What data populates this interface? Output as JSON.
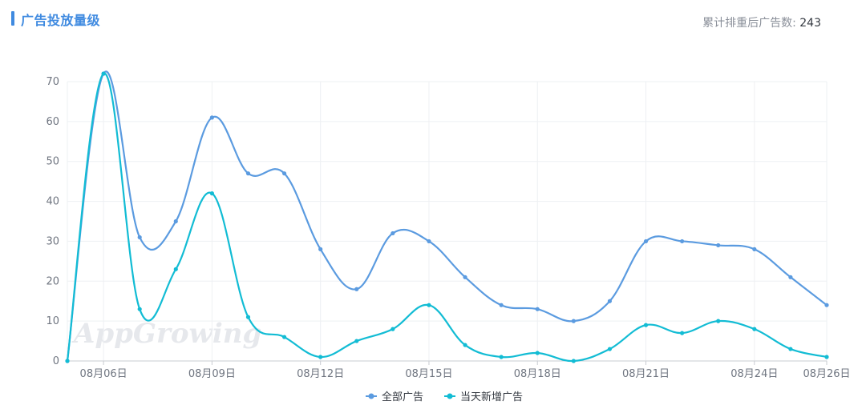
{
  "header": {
    "title": "广告投放量级",
    "summary_label": "累计排重后广告数:",
    "summary_value": "243"
  },
  "watermark": "AppGrowing",
  "colors": {
    "accent": "#3f8ae0",
    "series_all": "#5b9be0",
    "series_new": "#12bcd4",
    "grid": "#eef0f3",
    "axis_text": "#6f7580"
  },
  "chart_data": {
    "type": "line",
    "title": "",
    "xlabel": "",
    "ylabel": "",
    "ylim": [
      0,
      70
    ],
    "yticks": [
      0,
      10,
      20,
      30,
      40,
      50,
      60,
      70
    ],
    "x": [
      "08月05日",
      "08月06日",
      "08月07日",
      "08月08日",
      "08月09日",
      "08月10日",
      "08月11日",
      "08月12日",
      "08月13日",
      "08月14日",
      "08月15日",
      "08月16日",
      "08月17日",
      "08月18日",
      "08月19日",
      "08月20日",
      "08月21日",
      "08月22日",
      "08月23日",
      "08月24日",
      "08月25日",
      "08月26日"
    ],
    "xticks": [
      "08月06日",
      "08月09日",
      "08月12日",
      "08月15日",
      "08月18日",
      "08月21日",
      "08月24日",
      "08月26日"
    ],
    "grid": true,
    "legend_position": "bottom-center",
    "series": [
      {
        "name": "全部广告",
        "color": "#5b9be0",
        "values": [
          0,
          72,
          31,
          35,
          61,
          47,
          47,
          28,
          18,
          32,
          30,
          21,
          14,
          13,
          10,
          15,
          30,
          30,
          29,
          28,
          21,
          14
        ]
      },
      {
        "name": "当天新增广告",
        "color": "#12bcd4",
        "values": [
          0,
          72,
          13,
          23,
          42,
          11,
          6,
          1,
          5,
          8,
          14,
          4,
          1,
          2,
          0,
          3,
          9,
          7,
          10,
          8,
          3,
          1
        ]
      }
    ]
  }
}
